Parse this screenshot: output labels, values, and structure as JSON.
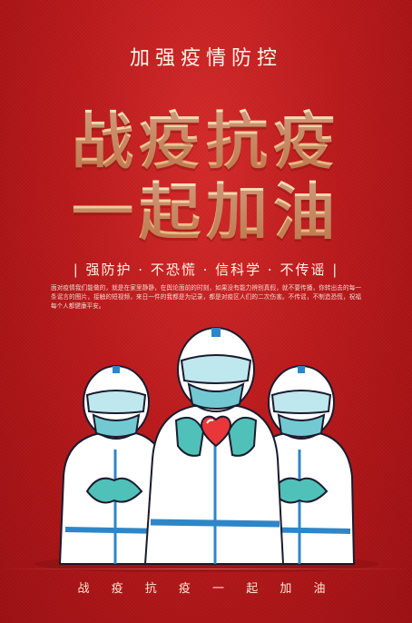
{
  "poster": {
    "subtitle": "加强疫情防控",
    "headline_line1": "战疫抗疫",
    "headline_line2": "一起加油",
    "slogan": "| 强防护 · 不恐慌 · 信科学 · 不传谣 |",
    "body_text": "面对疫情我们能做的，就是在家里静静，在舆论面前的时刻，如果没有能力辨别真假，就不要传播，你转出去的每一条谣言的图片，接触的短视频，来日一件的我都是为记录，都是对疫区人们的二次伤害。不传谣，不制造恐慌，祝福每个人都健康平安。",
    "footer": "战 疫 抗 疫 一 起 加 油",
    "illustration": {
      "figures": 3,
      "suit_color": "#ffffff",
      "accent_color": "#2f86c7",
      "glove_color": "#4fc1b8",
      "heart_color": "#e8363b"
    }
  }
}
